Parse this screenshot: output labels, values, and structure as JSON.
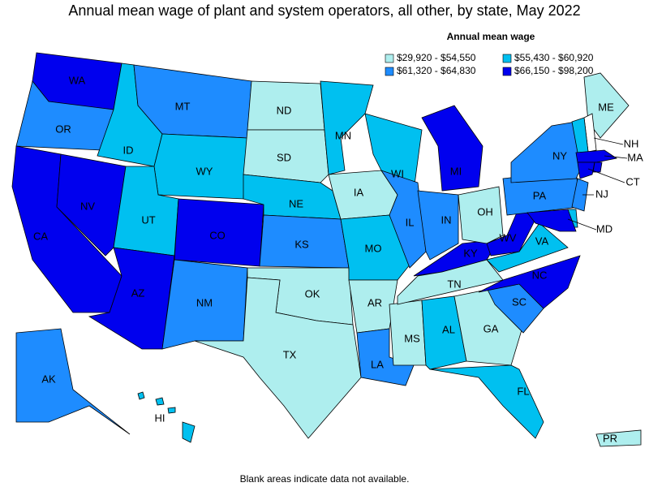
{
  "title": "Annual mean wage of plant and system operators, all other, by state, May 2022",
  "legend": {
    "title": "Annual mean wage",
    "items": [
      {
        "label": "$29,920 - $54,550",
        "color": "#aeeeee"
      },
      {
        "label": "$55,430 - $60,920",
        "color": "#00c0f0"
      },
      {
        "label": "$61,320 - $64,830",
        "color": "#1e8cff"
      },
      {
        "label": "$66,150 - $98,200",
        "color": "#0000ee"
      }
    ]
  },
  "states": [
    {
      "label": "WA",
      "class": 3
    },
    {
      "label": "OR",
      "class": 2
    },
    {
      "label": "CA",
      "class": 3
    },
    {
      "label": "NV",
      "class": 3
    },
    {
      "label": "ID",
      "class": 1
    },
    {
      "label": "MT",
      "class": 2
    },
    {
      "label": "WY",
      "class": 1
    },
    {
      "label": "UT",
      "class": 1
    },
    {
      "label": "CO",
      "class": 3
    },
    {
      "label": "AZ",
      "class": 3
    },
    {
      "label": "NM",
      "class": 2
    },
    {
      "label": "ND",
      "class": 0
    },
    {
      "label": "SD",
      "class": 0
    },
    {
      "label": "NE",
      "class": 1
    },
    {
      "label": "KS",
      "class": 2
    },
    {
      "label": "OK",
      "class": 0
    },
    {
      "label": "TX",
      "class": 0
    },
    {
      "label": "MN",
      "class": 1
    },
    {
      "label": "IA",
      "class": 0
    },
    {
      "label": "MO",
      "class": 1
    },
    {
      "label": "AR",
      "class": 0
    },
    {
      "label": "LA",
      "class": 2
    },
    {
      "label": "WI",
      "class": 1
    },
    {
      "label": "IL",
      "class": 2
    },
    {
      "label": "MS",
      "class": 0
    },
    {
      "label": "MI",
      "class": 3
    },
    {
      "label": "IN",
      "class": 2
    },
    {
      "label": "KY",
      "class": 3
    },
    {
      "label": "TN",
      "class": 0
    },
    {
      "label": "AL",
      "class": 1
    },
    {
      "label": "OH",
      "class": 0
    },
    {
      "label": "GA",
      "class": 0
    },
    {
      "label": "FL",
      "class": 1
    },
    {
      "label": "SC",
      "class": 2
    },
    {
      "label": "NC",
      "class": 3
    },
    {
      "label": "VA",
      "class": 1
    },
    {
      "label": "WV",
      "class": 3
    },
    {
      "label": "PA",
      "class": 2
    },
    {
      "label": "NY",
      "class": 2
    },
    {
      "label": "ME",
      "class": 0
    },
    {
      "label": "NH",
      "class": null
    },
    {
      "label": null,
      "class": 1
    },
    {
      "label": "MA",
      "class": 3
    },
    {
      "label": "CT",
      "class": 3
    },
    {
      "label": null,
      "class": 3
    },
    {
      "label": "NJ",
      "class": 2
    },
    {
      "label": null,
      "class": 1
    },
    {
      "label": "MD",
      "class": 3
    },
    {
      "label": "AK",
      "class": 2
    },
    {
      "label": "HI",
      "class": 1
    },
    {
      "label": "PR",
      "class": 0
    }
  ],
  "note": "Blank areas indicate data not available."
}
